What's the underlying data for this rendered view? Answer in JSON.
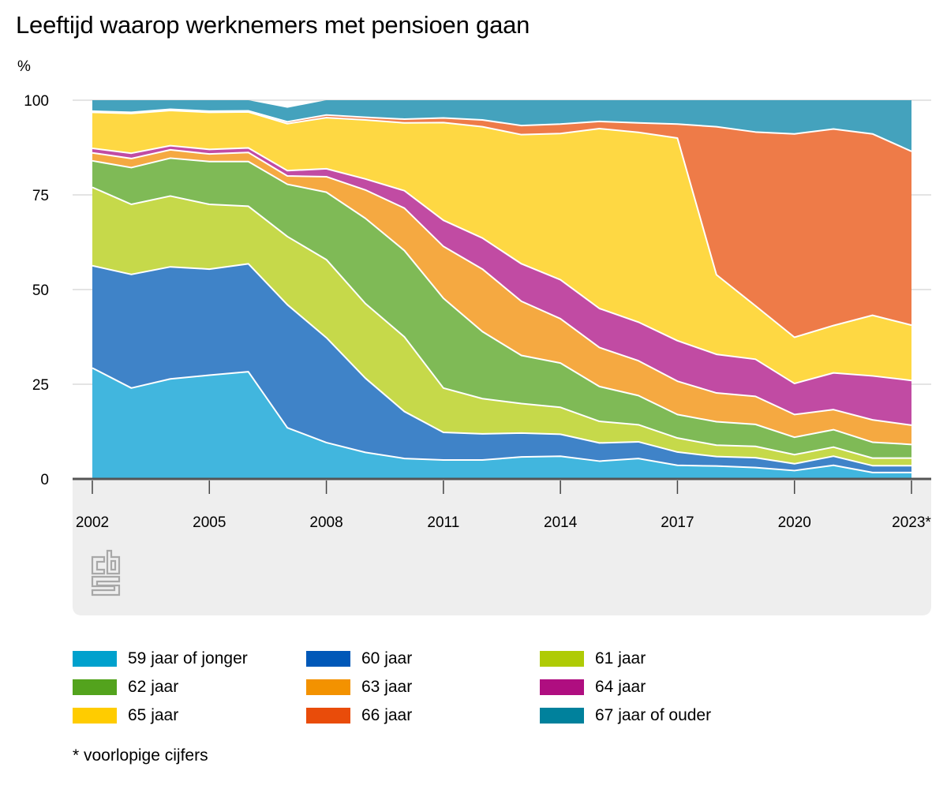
{
  "chart_data": {
    "type": "area",
    "stacked": true,
    "title": "Leeftijd waarop werknemers met pensioen gaan",
    "ylabel": "%",
    "xlabel": "",
    "ylim": [
      0,
      100
    ],
    "yticks": [
      0,
      25,
      50,
      75,
      100
    ],
    "grid": true,
    "legend_position": "bottom",
    "x": [
      2002,
      2003,
      2004,
      2005,
      2006,
      2007,
      2008,
      2009,
      2010,
      2011,
      2012,
      2013,
      2014,
      2015,
      2016,
      2017,
      2018,
      2019,
      2020,
      2021,
      2022,
      2023
    ],
    "x_tick_labels": [
      "2002",
      "2005",
      "2008",
      "2011",
      "2014",
      "2017",
      "2020",
      "2023*"
    ],
    "x_tick_values": [
      2002,
      2005,
      2008,
      2011,
      2014,
      2017,
      2020,
      2023
    ],
    "series": [
      {
        "name": "59 jaar of jonger",
        "color": "#41b6de",
        "values": [
          29.3,
          24.0,
          26.4,
          27.4,
          28.3,
          13.5,
          9.6,
          7.0,
          5.4,
          5.0,
          5.0,
          5.8,
          6.0,
          4.7,
          5.4,
          3.6,
          3.4,
          3.0,
          2.2,
          3.6,
          1.7,
          1.7
        ]
      },
      {
        "name": "60 jaar",
        "color": "#3f83c8",
        "values": [
          27.0,
          30.0,
          29.6,
          28.0,
          28.5,
          32.5,
          27.7,
          19.6,
          12.4,
          7.3,
          6.9,
          6.3,
          5.8,
          4.8,
          4.4,
          3.5,
          2.5,
          2.6,
          1.8,
          2.4,
          1.8,
          1.8
        ]
      },
      {
        "name": "61 jaar",
        "color": "#c6d94a",
        "values": [
          20.7,
          18.5,
          18.7,
          17.1,
          15.2,
          18.0,
          20.6,
          19.7,
          19.7,
          11.7,
          9.3,
          7.8,
          7.1,
          5.7,
          4.5,
          3.7,
          3.0,
          3.0,
          2.4,
          2.4,
          2.0,
          2.0
        ]
      },
      {
        "name": "62 jaar",
        "color": "#7fba56",
        "values": [
          7.0,
          9.7,
          10.0,
          11.3,
          11.8,
          13.8,
          17.8,
          22.5,
          22.8,
          23.7,
          17.7,
          12.7,
          11.7,
          9.2,
          7.7,
          6.2,
          6.2,
          5.8,
          4.6,
          4.6,
          4.2,
          3.6
        ]
      },
      {
        "name": "63 jaar",
        "color": "#f5a941",
        "values": [
          2.1,
          2.4,
          2.2,
          2.0,
          2.4,
          2.2,
          4.1,
          7.5,
          11.2,
          13.7,
          16.5,
          14.3,
          11.7,
          10.3,
          9.2,
          8.8,
          7.6,
          7.4,
          6.0,
          5.3,
          5.9,
          5.1
        ]
      },
      {
        "name": "64 jaar",
        "color": "#c14ba3",
        "values": [
          1.2,
          1.4,
          1.1,
          1.2,
          1.2,
          1.4,
          2.1,
          2.9,
          4.6,
          6.9,
          8.2,
          9.9,
          10.3,
          10.3,
          10.2,
          10.7,
          10.2,
          9.8,
          8.2,
          9.7,
          11.6,
          11.8
        ]
      },
      {
        "name": "65 jaar",
        "color": "#fed843",
        "values": [
          9.5,
          10.5,
          9.3,
          9.8,
          9.5,
          12.4,
          13.5,
          15.6,
          17.9,
          25.8,
          29.4,
          34.1,
          38.6,
          47.5,
          50.1,
          53.5,
          21.0,
          14.1,
          12.2,
          12.5,
          16.0,
          14.6
        ]
      },
      {
        "name": "66 jaar",
        "color": "#ee7b48",
        "values": [
          0.3,
          0.3,
          0.3,
          0.3,
          0.3,
          0.5,
          0.7,
          0.7,
          1.0,
          1.2,
          1.8,
          2.4,
          2.5,
          1.9,
          2.5,
          3.7,
          39.1,
          45.9,
          53.7,
          51.9,
          47.9,
          45.9
        ]
      },
      {
        "name": "67 jaar of ouder",
        "color": "#44a2bd",
        "values": [
          2.9,
          3.2,
          2.4,
          2.9,
          2.8,
          3.7,
          3.9,
          4.5,
          5.0,
          4.7,
          5.2,
          6.7,
          6.3,
          5.6,
          6.0,
          6.3,
          7.0,
          8.4,
          8.9,
          7.6,
          8.9,
          13.5
        ]
      }
    ],
    "legend": {
      "items": [
        {
          "label": "59 jaar of jonger",
          "color": "#00a1cd"
        },
        {
          "label": "60 jaar",
          "color": "#0058b8"
        },
        {
          "label": "61 jaar",
          "color": "#afcb05"
        },
        {
          "label": "62 jaar",
          "color": "#53a31d"
        },
        {
          "label": "63 jaar",
          "color": "#f39200"
        },
        {
          "label": "64 jaar",
          "color": "#af0e80"
        },
        {
          "label": "65 jaar",
          "color": "#ffcc00"
        },
        {
          "label": "66 jaar",
          "color": "#e94c0a"
        },
        {
          "label": "67 jaar of ouder",
          "color": "#00819c"
        }
      ]
    },
    "footnote": "* voorlopige cijfers",
    "logo": "cbs-logo"
  }
}
